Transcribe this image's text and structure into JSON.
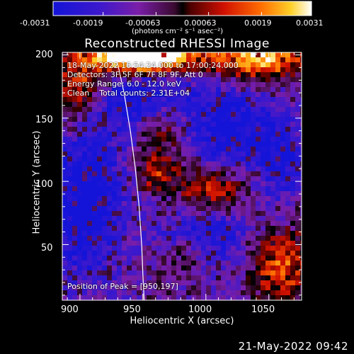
{
  "colorbar": {
    "ticks": [
      "-0.0031",
      "-0.0019",
      "-0.00063",
      "0.00063",
      "0.0019",
      "0.0031"
    ],
    "unit_label": "(photons cm⁻² s⁻¹ asec⁻²)",
    "range": [
      -0.0031,
      0.0031
    ]
  },
  "chart_data": {
    "type": "heatmap",
    "title": "Reconstructed RHESSI Image",
    "xlabel": "Heliocentric X (arcsec)",
    "ylabel": "Heliocentric Y (arcsec)",
    "xlim": [
      886,
      1076
    ],
    "ylim": [
      6,
      202
    ],
    "x_ticks": [
      900,
      950,
      1000,
      1050
    ],
    "x_tick_labels": [
      "900",
      "950",
      "1000",
      "1050"
    ],
    "y_ticks": [
      50,
      100,
      150,
      200
    ],
    "y_tick_labels": [
      "50",
      "100",
      "150",
      "200"
    ],
    "peak": [
      950,
      197
    ],
    "limb_curve": [
      [
        928,
        202
      ],
      [
        935,
        170
      ],
      [
        940,
        140
      ],
      [
        944,
        110
      ],
      [
        947,
        80
      ],
      [
        949,
        50
      ],
      [
        950,
        25
      ],
      [
        951,
        6
      ]
    ]
  },
  "info": {
    "lines": [
      "18-May-2022 16:54:24.000 to 17:00:24.000",
      "Detectors: 3F 5F 6F 7F 8F 9F, Att 0",
      "Energy Range: 6.0 - 12.0 keV",
      "Clean    Total counts: 2.31E+04"
    ],
    "peak_label": "Position of Peak = [950,197]"
  },
  "timestamp": "21-May-2022 09:42"
}
